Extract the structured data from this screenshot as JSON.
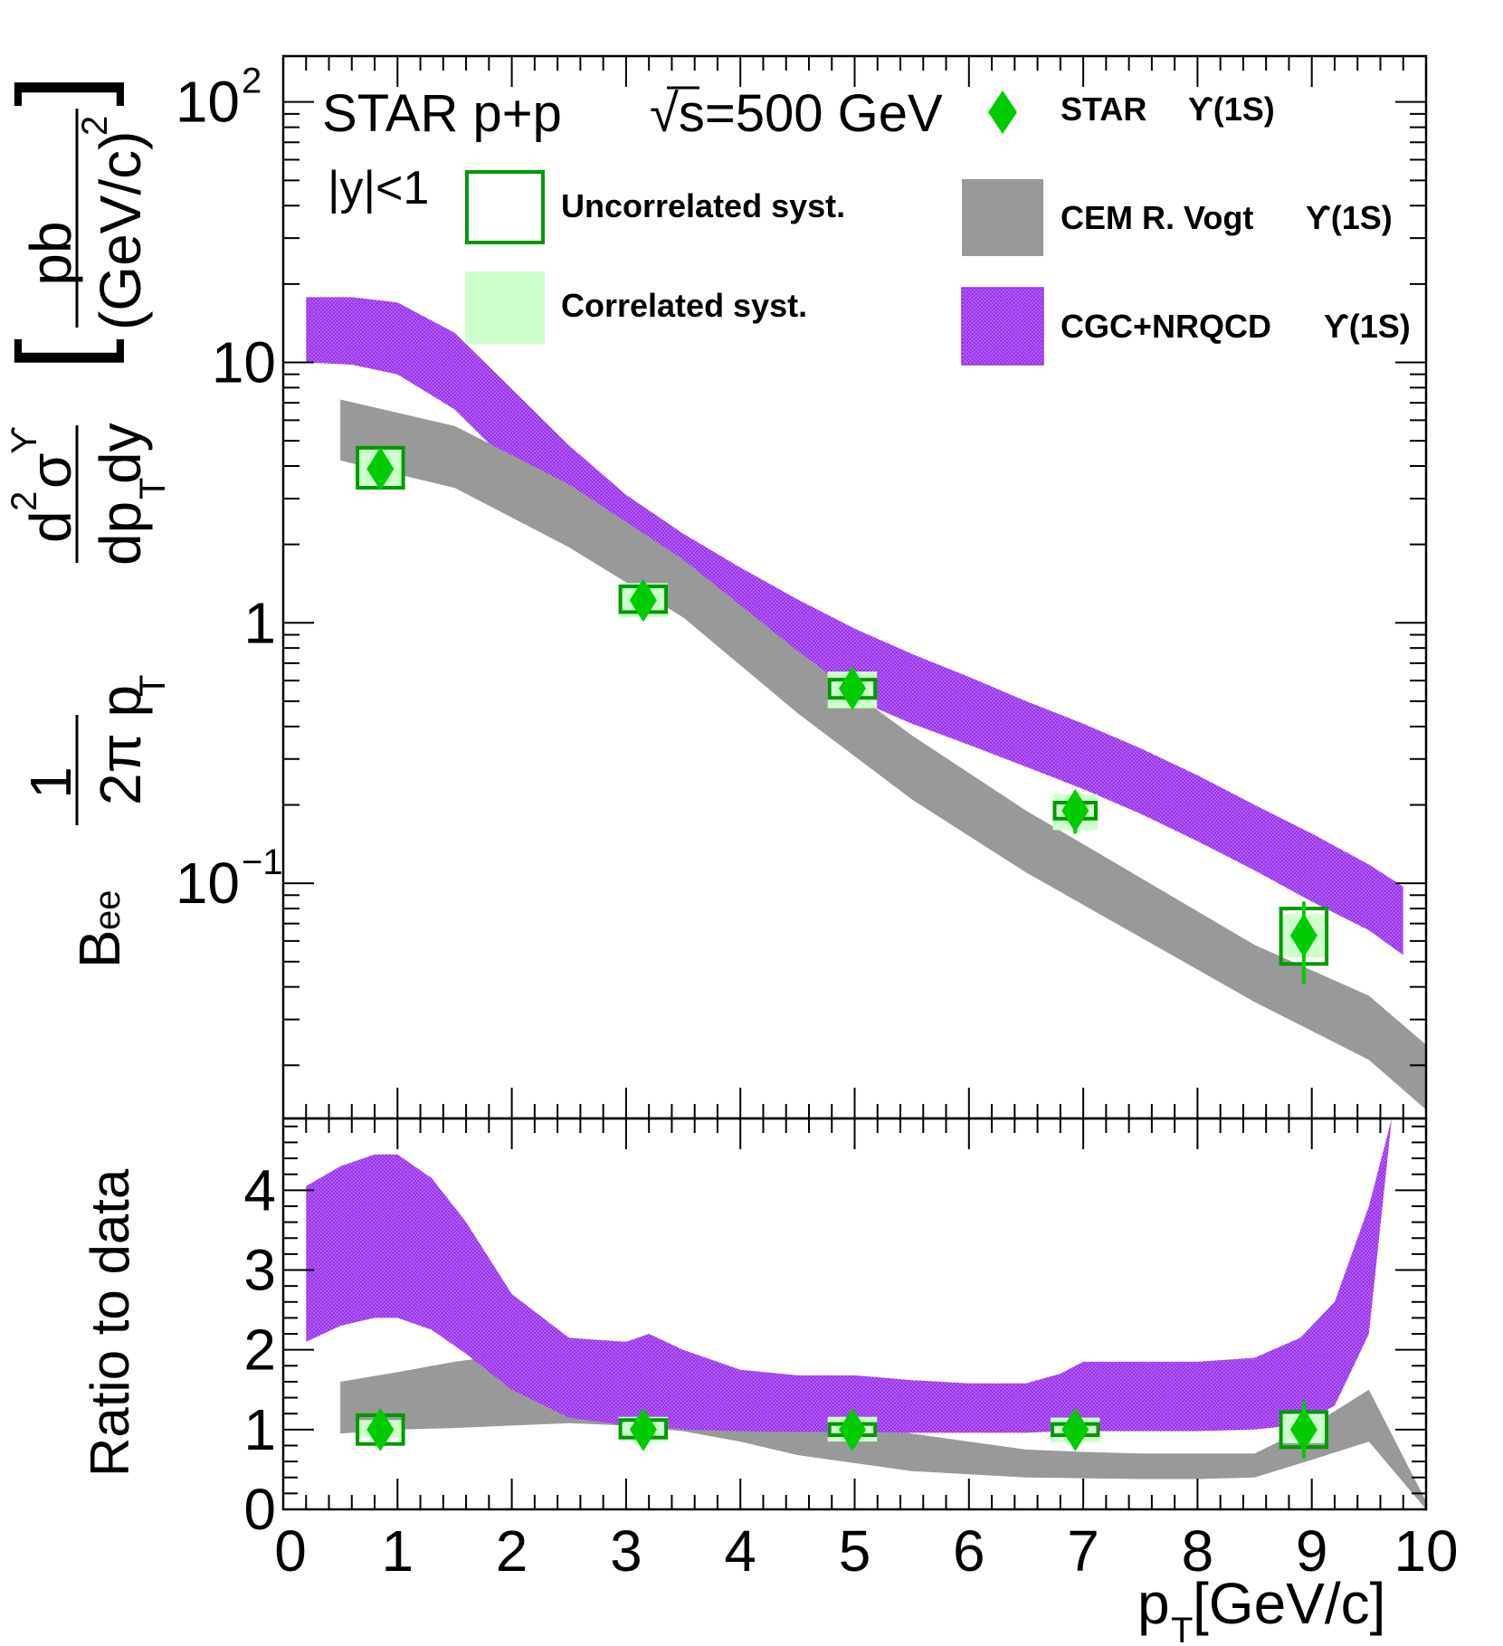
{
  "chart_data": [
    {
      "type": "scatter",
      "panel": "top",
      "scale": "log",
      "title": "",
      "annotations": {
        "experiment": "STAR p+p",
        "energy": "√s=500 GeV",
        "rapidity": "|y|<1"
      },
      "ylabel": {
        "prefix": "B",
        "prefix_sub": "ee",
        "frac1_num": "1",
        "frac1_den": "2π p",
        "frac1_den_sub": "T",
        "frac2_num": "d",
        "frac2_num_sup": "2",
        "frac2_num_sym": "σ",
        "frac2_num_sym_sup": "ϒ",
        "frac2_den": "dp",
        "frac2_den_sub": "T",
        "frac2_den_tail": "dy",
        "unit_num": "pb",
        "unit_den": "(GeV/c)",
        "unit_den_sup": "2"
      },
      "xlim": [
        0,
        10
      ],
      "ylim": [
        0.0125,
        150
      ],
      "yticks": [
        {
          "v": 100,
          "text": "10",
          "sup": "2"
        },
        {
          "v": 10,
          "text": "10",
          "sup": ""
        },
        {
          "v": 1,
          "text": "1",
          "sup": ""
        },
        {
          "v": 0.1,
          "text": "10",
          "sup": "−1"
        }
      ],
      "legend": {
        "placement": "top-right",
        "star": "STAR",
        "star_state": "ϒ(1S)",
        "uncorr": "Uncorrelated syst.",
        "corr": "Correlated syst.",
        "cem": "CEM R. Vogt",
        "cem_state": "ϒ(1S)",
        "cgc": "CGC+NRQCD",
        "cgc_state": "ϒ(1S)"
      },
      "data_points": [
        {
          "x": 0.85,
          "y": 3.9,
          "yerr": 0.55,
          "unc_dx": 0.2,
          "unc_lo": 3.3,
          "unc_hi": 4.7,
          "cor_lo": 3.3,
          "cor_hi": 4.7
        },
        {
          "x": 3.15,
          "y": 1.22,
          "yerr": 0.17,
          "unc_dx": 0.2,
          "unc_lo": 1.1,
          "unc_hi": 1.38,
          "cor_lo": 1.05,
          "cor_hi": 1.42
        },
        {
          "x": 4.98,
          "y": 0.56,
          "yerr": 0.07,
          "unc_dx": 0.2,
          "unc_lo": 0.515,
          "unc_hi": 0.605,
          "cor_lo": 0.47,
          "cor_hi": 0.65
        },
        {
          "x": 6.93,
          "y": 0.19,
          "yerr": 0.035,
          "unc_dx": 0.18,
          "unc_lo": 0.177,
          "unc_hi": 0.204,
          "cor_lo": 0.16,
          "cor_hi": 0.22
        },
        {
          "x": 8.93,
          "y": 0.063,
          "yerr": 0.022,
          "unc_dx": 0.2,
          "unc_lo": 0.049,
          "unc_hi": 0.08,
          "cor_lo": 0.052,
          "cor_hi": 0.076
        }
      ],
      "cem_band": {
        "x": [
          0.5,
          1.5,
          2.5,
          3.5,
          4.5,
          5.5,
          6.5,
          7.5,
          8.5,
          9.5,
          10.0
        ],
        "low": [
          4.2,
          3.3,
          1.95,
          1.05,
          0.45,
          0.21,
          0.11,
          0.062,
          0.035,
          0.021,
          0.0135
        ],
        "high": [
          7.2,
          5.7,
          3.4,
          1.75,
          0.78,
          0.37,
          0.19,
          0.105,
          0.058,
          0.037,
          0.024
        ]
      },
      "cgc_band": {
        "x": [
          0.2,
          0.6,
          1.0,
          1.5,
          2.0,
          2.5,
          3.0,
          3.5,
          4.0,
          4.5,
          5.0,
          5.5,
          6.0,
          6.5,
          7.0,
          7.5,
          8.0,
          8.5,
          9.0,
          9.5,
          9.8
        ],
        "low": [
          10.0,
          9.8,
          9.0,
          6.6,
          4.0,
          2.45,
          1.6,
          1.15,
          0.86,
          0.65,
          0.51,
          0.41,
          0.34,
          0.28,
          0.23,
          0.185,
          0.145,
          0.112,
          0.085,
          0.066,
          0.053
        ],
        "high": [
          17.8,
          17.8,
          17.0,
          13.0,
          7.9,
          4.8,
          3.1,
          2.2,
          1.63,
          1.23,
          0.95,
          0.76,
          0.62,
          0.5,
          0.41,
          0.33,
          0.26,
          0.2,
          0.155,
          0.118,
          0.097
        ]
      }
    },
    {
      "type": "scatter",
      "panel": "bottom",
      "ylabel": "Ratio to data",
      "xlabel": "p",
      "xlabel_sub": "T",
      "xlabel_unit": " [GeV/c]",
      "xlim": [
        0,
        10
      ],
      "ylim": [
        0,
        4.9
      ],
      "xticks": [
        "0",
        "1",
        "2",
        "3",
        "4",
        "5",
        "6",
        "7",
        "8",
        "9",
        "10"
      ],
      "yticks": [
        "0",
        "1",
        "2",
        "3",
        "4"
      ],
      "data_points": [
        {
          "x": 0.85,
          "y": 1.0,
          "yerr": 0.22,
          "box_lo": 0.82,
          "box_hi": 1.18,
          "cor_lo": 0.9,
          "cor_hi": 1.12
        },
        {
          "x": 3.15,
          "y": 1.0,
          "yerr": 0.2,
          "box_lo": 0.9,
          "box_hi": 1.12,
          "cor_lo": 0.85,
          "cor_hi": 1.16
        },
        {
          "x": 4.98,
          "y": 1.0,
          "yerr": 0.17,
          "box_lo": 0.93,
          "box_hi": 1.07,
          "cor_lo": 0.85,
          "cor_hi": 1.16
        },
        {
          "x": 6.93,
          "y": 1.0,
          "yerr": 0.18,
          "box_lo": 0.93,
          "box_hi": 1.07,
          "cor_lo": 0.84,
          "cor_hi": 1.15
        },
        {
          "x": 8.93,
          "y": 1.0,
          "yerr": 0.36,
          "box_lo": 0.78,
          "box_hi": 1.22,
          "cor_lo": 0.83,
          "cor_hi": 1.2
        }
      ],
      "cem_band": {
        "x": [
          0.5,
          1.0,
          1.5,
          2.0,
          2.5,
          3.0,
          3.5,
          4.0,
          4.5,
          5.0,
          5.5,
          6.0,
          6.5,
          7.0,
          7.5,
          8.0,
          8.5,
          9.0,
          9.5,
          10.0
        ],
        "low": [
          0.95,
          1.0,
          1.02,
          1.05,
          1.08,
          1.05,
          0.98,
          0.85,
          0.68,
          0.58,
          0.48,
          0.44,
          0.4,
          0.39,
          0.38,
          0.38,
          0.4,
          0.62,
          0.85,
          0.0
        ],
        "high": [
          1.6,
          1.72,
          1.85,
          1.95,
          1.95,
          1.9,
          1.72,
          1.5,
          1.28,
          1.1,
          0.95,
          0.85,
          0.75,
          0.72,
          0.7,
          0.7,
          0.7,
          1.05,
          1.5,
          0.1
        ]
      },
      "cgc_band": {
        "x": [
          0.2,
          0.5,
          0.8,
          1.0,
          1.3,
          1.6,
          2.0,
          2.5,
          3.0,
          3.2,
          3.5,
          4.0,
          4.5,
          5.0,
          5.5,
          6.0,
          6.5,
          6.8,
          7.0,
          7.5,
          8.0,
          8.5,
          8.9,
          9.2,
          9.5,
          9.7
        ],
        "low": [
          2.1,
          2.3,
          2.4,
          2.4,
          2.25,
          1.95,
          1.5,
          1.15,
          1.05,
          1.05,
          1.0,
          0.98,
          0.97,
          0.97,
          0.96,
          0.96,
          0.96,
          0.98,
          0.98,
          0.98,
          0.98,
          1.0,
          1.06,
          1.3,
          2.2,
          4.9
        ],
        "high": [
          4.05,
          4.3,
          4.45,
          4.45,
          4.15,
          3.6,
          2.7,
          2.15,
          2.1,
          2.2,
          2.0,
          1.75,
          1.68,
          1.68,
          1.62,
          1.58,
          1.58,
          1.7,
          1.85,
          1.85,
          1.85,
          1.9,
          2.15,
          2.6,
          3.8,
          4.9
        ]
      }
    }
  ],
  "colors": {
    "star": "#00cc00",
    "uncorr_stroke": "#009900",
    "corr_fill": "#ccffcc",
    "cem": "#999999",
    "cgc": "#9933ee",
    "cgc_dot": "#c47cf5"
  }
}
